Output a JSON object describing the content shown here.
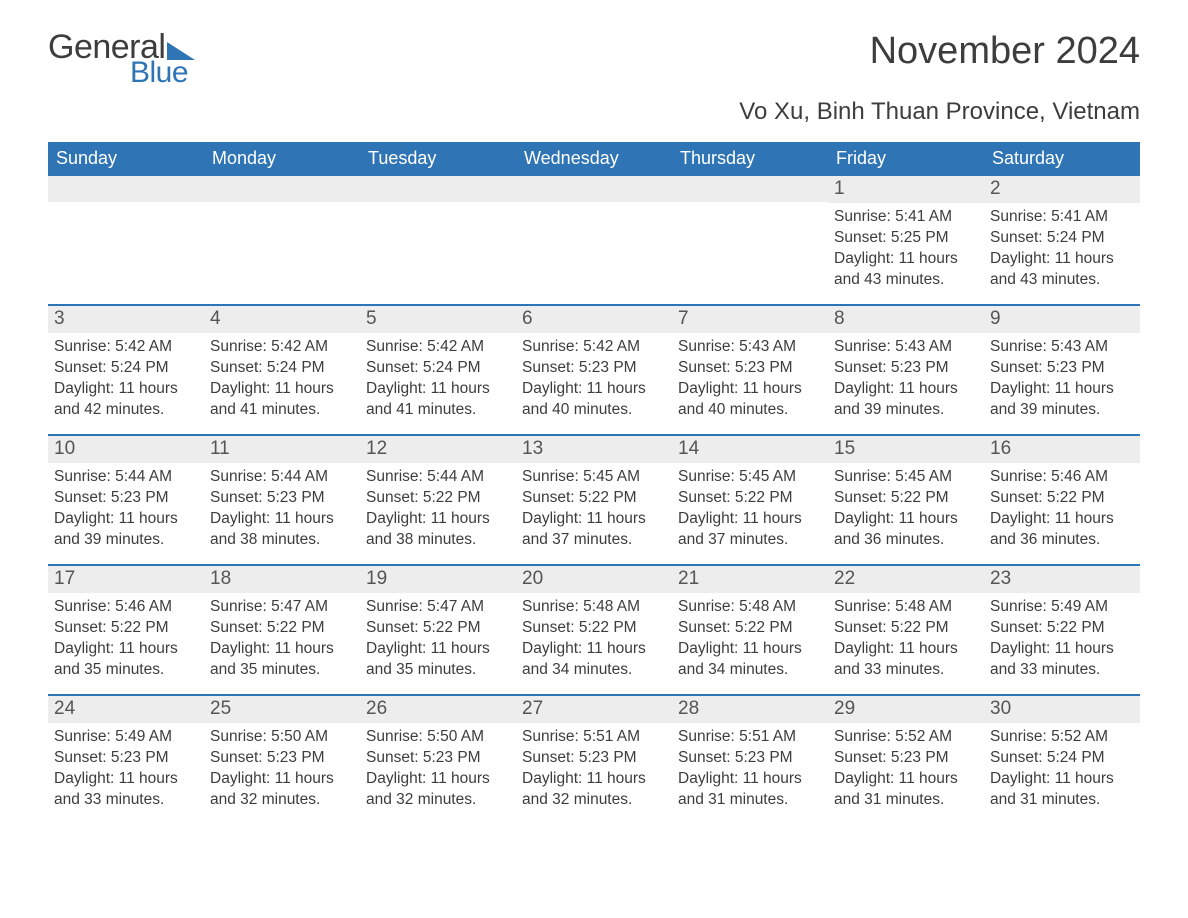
{
  "logo": {
    "text1": "General",
    "text2": "Blue",
    "tri_color": "#2f74b5"
  },
  "title": "November 2024",
  "location": "Vo Xu, Binh Thuan Province, Vietnam",
  "colors": {
    "header_bg": "#2f74b5",
    "header_text": "#ffffff",
    "daynum_bg": "#ededed",
    "text": "#3d3d3d",
    "week_border": "#2f74b5"
  },
  "weekdays": [
    "Sunday",
    "Monday",
    "Tuesday",
    "Wednesday",
    "Thursday",
    "Friday",
    "Saturday"
  ],
  "weeks": [
    [
      {
        "empty": true
      },
      {
        "empty": true
      },
      {
        "empty": true
      },
      {
        "empty": true
      },
      {
        "empty": true
      },
      {
        "n": "1",
        "sr": "5:41 AM",
        "ss": "5:25 PM",
        "dl": "11 hours and 43 minutes."
      },
      {
        "n": "2",
        "sr": "5:41 AM",
        "ss": "5:24 PM",
        "dl": "11 hours and 43 minutes."
      }
    ],
    [
      {
        "n": "3",
        "sr": "5:42 AM",
        "ss": "5:24 PM",
        "dl": "11 hours and 42 minutes."
      },
      {
        "n": "4",
        "sr": "5:42 AM",
        "ss": "5:24 PM",
        "dl": "11 hours and 41 minutes."
      },
      {
        "n": "5",
        "sr": "5:42 AM",
        "ss": "5:24 PM",
        "dl": "11 hours and 41 minutes."
      },
      {
        "n": "6",
        "sr": "5:42 AM",
        "ss": "5:23 PM",
        "dl": "11 hours and 40 minutes."
      },
      {
        "n": "7",
        "sr": "5:43 AM",
        "ss": "5:23 PM",
        "dl": "11 hours and 40 minutes."
      },
      {
        "n": "8",
        "sr": "5:43 AM",
        "ss": "5:23 PM",
        "dl": "11 hours and 39 minutes."
      },
      {
        "n": "9",
        "sr": "5:43 AM",
        "ss": "5:23 PM",
        "dl": "11 hours and 39 minutes."
      }
    ],
    [
      {
        "n": "10",
        "sr": "5:44 AM",
        "ss": "5:23 PM",
        "dl": "11 hours and 39 minutes."
      },
      {
        "n": "11",
        "sr": "5:44 AM",
        "ss": "5:23 PM",
        "dl": "11 hours and 38 minutes."
      },
      {
        "n": "12",
        "sr": "5:44 AM",
        "ss": "5:22 PM",
        "dl": "11 hours and 38 minutes."
      },
      {
        "n": "13",
        "sr": "5:45 AM",
        "ss": "5:22 PM",
        "dl": "11 hours and 37 minutes."
      },
      {
        "n": "14",
        "sr": "5:45 AM",
        "ss": "5:22 PM",
        "dl": "11 hours and 37 minutes."
      },
      {
        "n": "15",
        "sr": "5:45 AM",
        "ss": "5:22 PM",
        "dl": "11 hours and 36 minutes."
      },
      {
        "n": "16",
        "sr": "5:46 AM",
        "ss": "5:22 PM",
        "dl": "11 hours and 36 minutes."
      }
    ],
    [
      {
        "n": "17",
        "sr": "5:46 AM",
        "ss": "5:22 PM",
        "dl": "11 hours and 35 minutes."
      },
      {
        "n": "18",
        "sr": "5:47 AM",
        "ss": "5:22 PM",
        "dl": "11 hours and 35 minutes."
      },
      {
        "n": "19",
        "sr": "5:47 AM",
        "ss": "5:22 PM",
        "dl": "11 hours and 35 minutes."
      },
      {
        "n": "20",
        "sr": "5:48 AM",
        "ss": "5:22 PM",
        "dl": "11 hours and 34 minutes."
      },
      {
        "n": "21",
        "sr": "5:48 AM",
        "ss": "5:22 PM",
        "dl": "11 hours and 34 minutes."
      },
      {
        "n": "22",
        "sr": "5:48 AM",
        "ss": "5:22 PM",
        "dl": "11 hours and 33 minutes."
      },
      {
        "n": "23",
        "sr": "5:49 AM",
        "ss": "5:22 PM",
        "dl": "11 hours and 33 minutes."
      }
    ],
    [
      {
        "n": "24",
        "sr": "5:49 AM",
        "ss": "5:23 PM",
        "dl": "11 hours and 33 minutes."
      },
      {
        "n": "25",
        "sr": "5:50 AM",
        "ss": "5:23 PM",
        "dl": "11 hours and 32 minutes."
      },
      {
        "n": "26",
        "sr": "5:50 AM",
        "ss": "5:23 PM",
        "dl": "11 hours and 32 minutes."
      },
      {
        "n": "27",
        "sr": "5:51 AM",
        "ss": "5:23 PM",
        "dl": "11 hours and 32 minutes."
      },
      {
        "n": "28",
        "sr": "5:51 AM",
        "ss": "5:23 PM",
        "dl": "11 hours and 31 minutes."
      },
      {
        "n": "29",
        "sr": "5:52 AM",
        "ss": "5:23 PM",
        "dl": "11 hours and 31 minutes."
      },
      {
        "n": "30",
        "sr": "5:52 AM",
        "ss": "5:24 PM",
        "dl": "11 hours and 31 minutes."
      }
    ]
  ],
  "labels": {
    "sunrise": "Sunrise: ",
    "sunset": "Sunset: ",
    "daylight": "Daylight: "
  }
}
